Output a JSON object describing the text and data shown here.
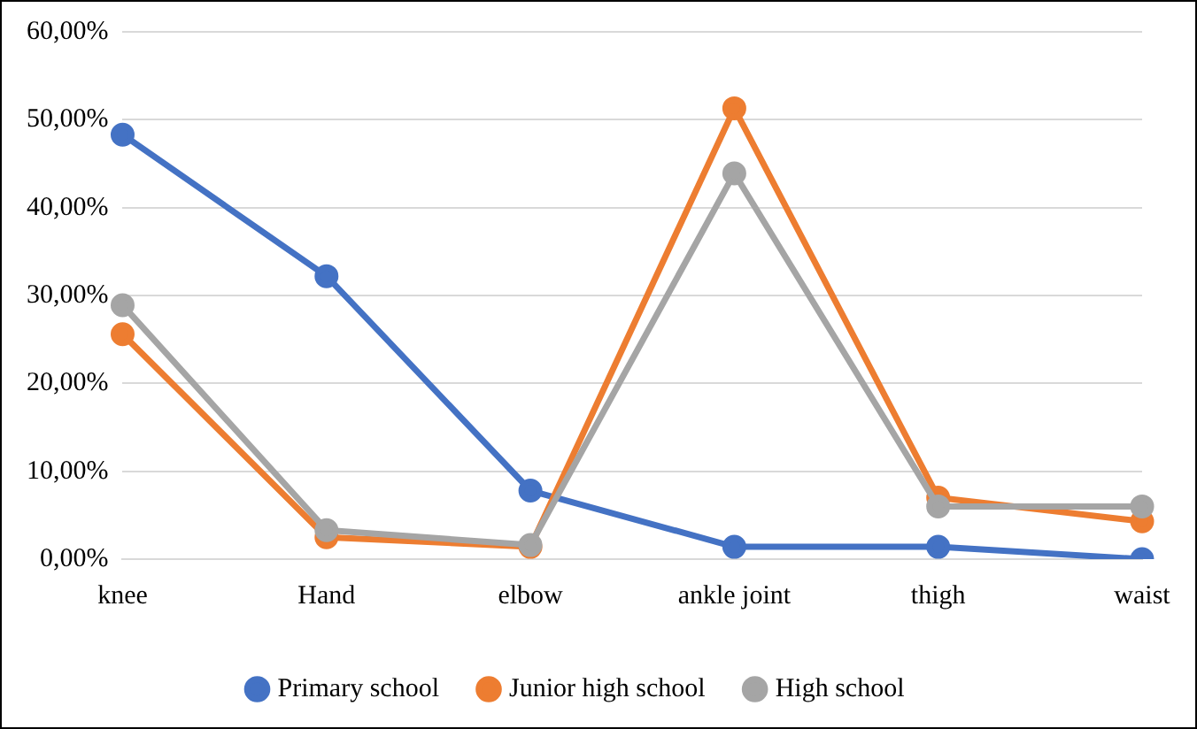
{
  "chart_data": {
    "type": "line",
    "categories": [
      "knee",
      "Hand",
      "elbow",
      "ankle joint",
      "thigh",
      "waist"
    ],
    "series": [
      {
        "name": "Primary school",
        "color": "#4472c4",
        "values": [
          48.3,
          32.2,
          7.8,
          1.4,
          1.4,
          0
        ]
      },
      {
        "name": "Junior high school",
        "color": "#ed7d31",
        "values": [
          25.6,
          2.5,
          1.4,
          51.3,
          7.0,
          4.3
        ]
      },
      {
        "name": "High school",
        "color": "#a5a5a5",
        "values": [
          28.9,
          3.3,
          1.6,
          43.9,
          6.0,
          6.0
        ]
      }
    ],
    "ylim": [
      0,
      60
    ],
    "yticks": [
      {
        "value": 0,
        "label": "0,00%"
      },
      {
        "value": 10,
        "label": "10,00%"
      },
      {
        "value": 20,
        "label": "20,00%"
      },
      {
        "value": 30,
        "label": "30,00%"
      },
      {
        "value": 40,
        "label": "40,00%"
      },
      {
        "value": 50,
        "label": "50,00%"
      },
      {
        "value": 60,
        "label": "60,00%"
      }
    ],
    "grid": "y",
    "legend": "bottom",
    "marker": "circle",
    "line_style": "solid"
  }
}
